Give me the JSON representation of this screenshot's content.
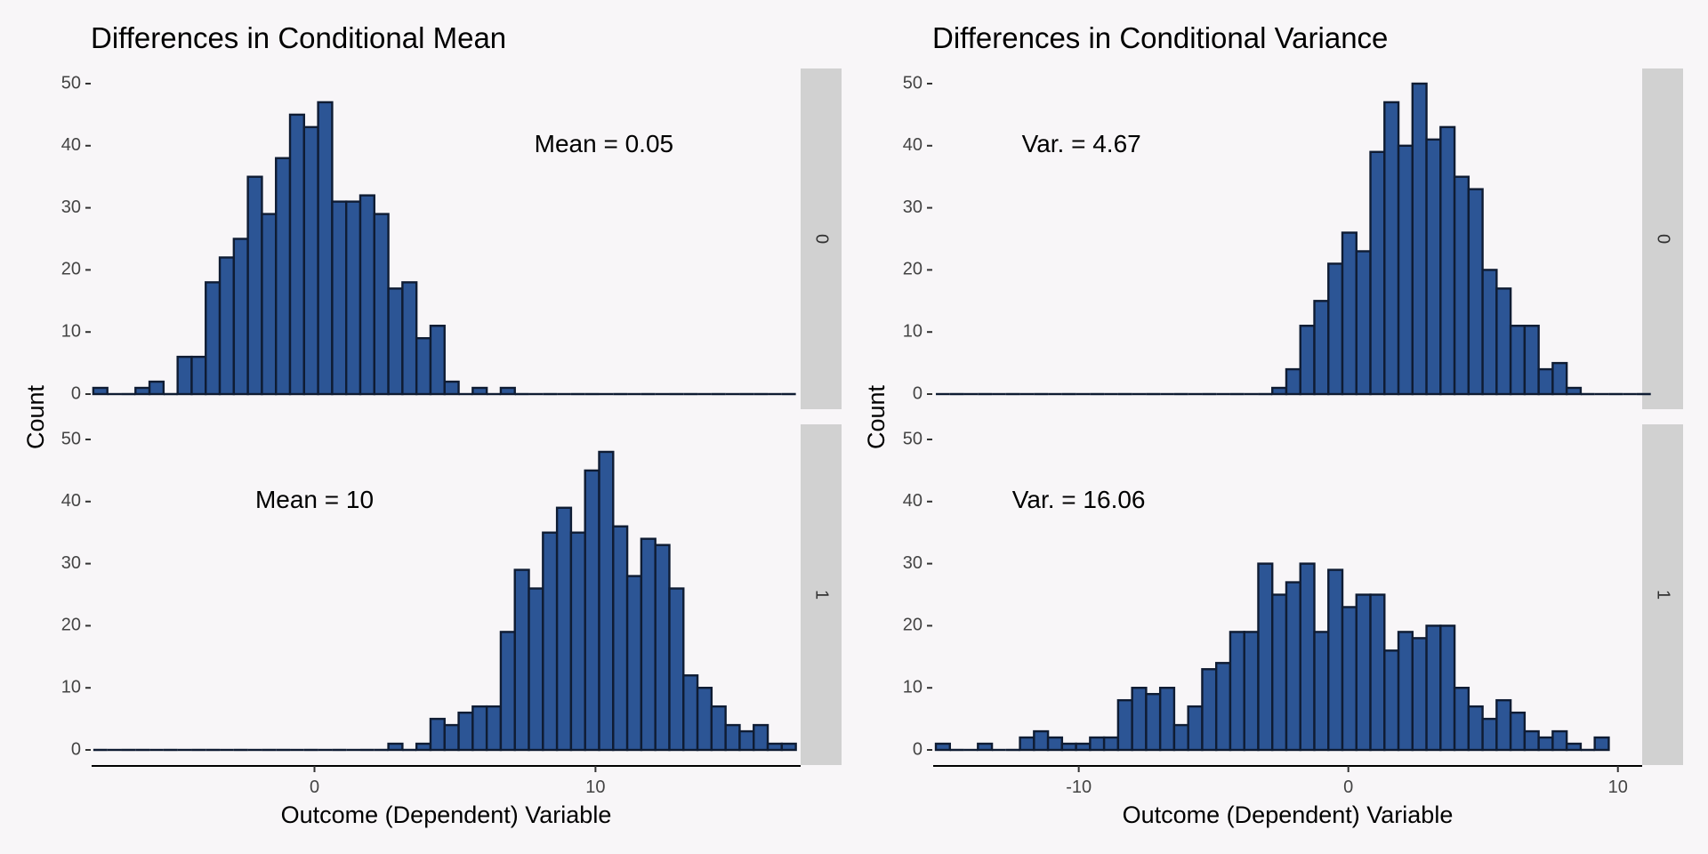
{
  "chart_data": [
    {
      "type": "bar",
      "title": "Differences in Conditional Mean",
      "xlabel": "Outcome (Dependent) Variable",
      "ylabel": "Count",
      "xlim": [
        -7.93,
        17.3
      ],
      "ylim": [
        0,
        50
      ],
      "x_ticks": [
        0,
        10
      ],
      "y_ticks": [
        0,
        10,
        20,
        30,
        40,
        50
      ],
      "x_tick_labels": [
        "0",
        "10"
      ],
      "y_tick_labels": [
        "0",
        "10",
        "20",
        "30",
        "40",
        "50"
      ],
      "bin_start": -7.87,
      "bin_width": 0.5,
      "panels": [
        {
          "strip": "0",
          "annotation": "Mean = 0.05",
          "annotation_at": [
            10.3,
            40
          ],
          "counts": [
            1,
            0,
            0,
            1,
            2,
            0,
            6,
            6,
            18,
            22,
            25,
            35,
            29,
            38,
            45,
            43,
            47,
            31,
            31,
            32,
            29,
            17,
            18,
            9,
            11,
            2,
            0,
            1,
            0,
            1,
            0,
            0,
            0,
            0,
            0,
            0,
            0,
            0,
            0,
            0,
            0,
            0,
            0,
            0,
            0,
            0,
            0,
            0,
            0,
            0
          ]
        },
        {
          "strip": "1",
          "annotation": "Mean = 10",
          "annotation_at": [
            0,
            40
          ],
          "counts": [
            0,
            0,
            0,
            0,
            0,
            0,
            0,
            0,
            0,
            0,
            0,
            0,
            0,
            0,
            0,
            0,
            0,
            0,
            0,
            0,
            0,
            1,
            0,
            1,
            5,
            4,
            6,
            7,
            7,
            19,
            29,
            26,
            35,
            39,
            35,
            45,
            48,
            36,
            28,
            34,
            33,
            26,
            12,
            10,
            7,
            4,
            3,
            4,
            1,
            1
          ]
        }
      ]
    },
    {
      "type": "bar",
      "title": "Differences in Conditional Variance",
      "xlabel": "Outcome (Dependent) Variable",
      "ylabel": "Count",
      "xlim": [
        -15.4,
        10.9
      ],
      "ylim": [
        0,
        50
      ],
      "x_ticks": [
        -10,
        0,
        10
      ],
      "y_ticks": [
        0,
        10,
        20,
        30,
        40,
        50
      ],
      "x_tick_labels": [
        "-10",
        "0",
        "10"
      ],
      "y_tick_labels": [
        "0",
        "10",
        "20",
        "30",
        "40",
        "50"
      ],
      "bin_start": -15.3,
      "bin_width": 0.52,
      "panels": [
        {
          "strip": "0",
          "annotation": "Var. = 4.67",
          "annotation_at": [
            -9.9,
            40
          ],
          "counts": [
            0,
            0,
            0,
            0,
            0,
            0,
            0,
            0,
            0,
            0,
            0,
            0,
            0,
            0,
            0,
            0,
            0,
            0,
            0,
            0,
            0,
            0,
            0,
            0,
            1,
            4,
            11,
            15,
            21,
            26,
            23,
            39,
            47,
            40,
            50,
            41,
            43,
            35,
            33,
            20,
            17,
            11,
            11,
            4,
            5,
            1,
            0,
            0,
            0,
            0,
            0
          ]
        },
        {
          "strip": "1",
          "annotation": "Var. = 16.06",
          "annotation_at": [
            -10,
            40
          ],
          "counts": [
            1,
            0,
            0,
            1,
            0,
            0,
            2,
            3,
            2,
            1,
            1,
            2,
            2,
            8,
            10,
            9,
            10,
            4,
            7,
            13,
            14,
            19,
            19,
            30,
            25,
            27,
            30,
            19,
            29,
            23,
            25,
            25,
            16,
            19,
            18,
            20,
            20,
            10,
            7,
            5,
            8,
            6,
            3,
            2,
            3,
            1,
            0,
            2
          ]
        }
      ]
    }
  ]
}
